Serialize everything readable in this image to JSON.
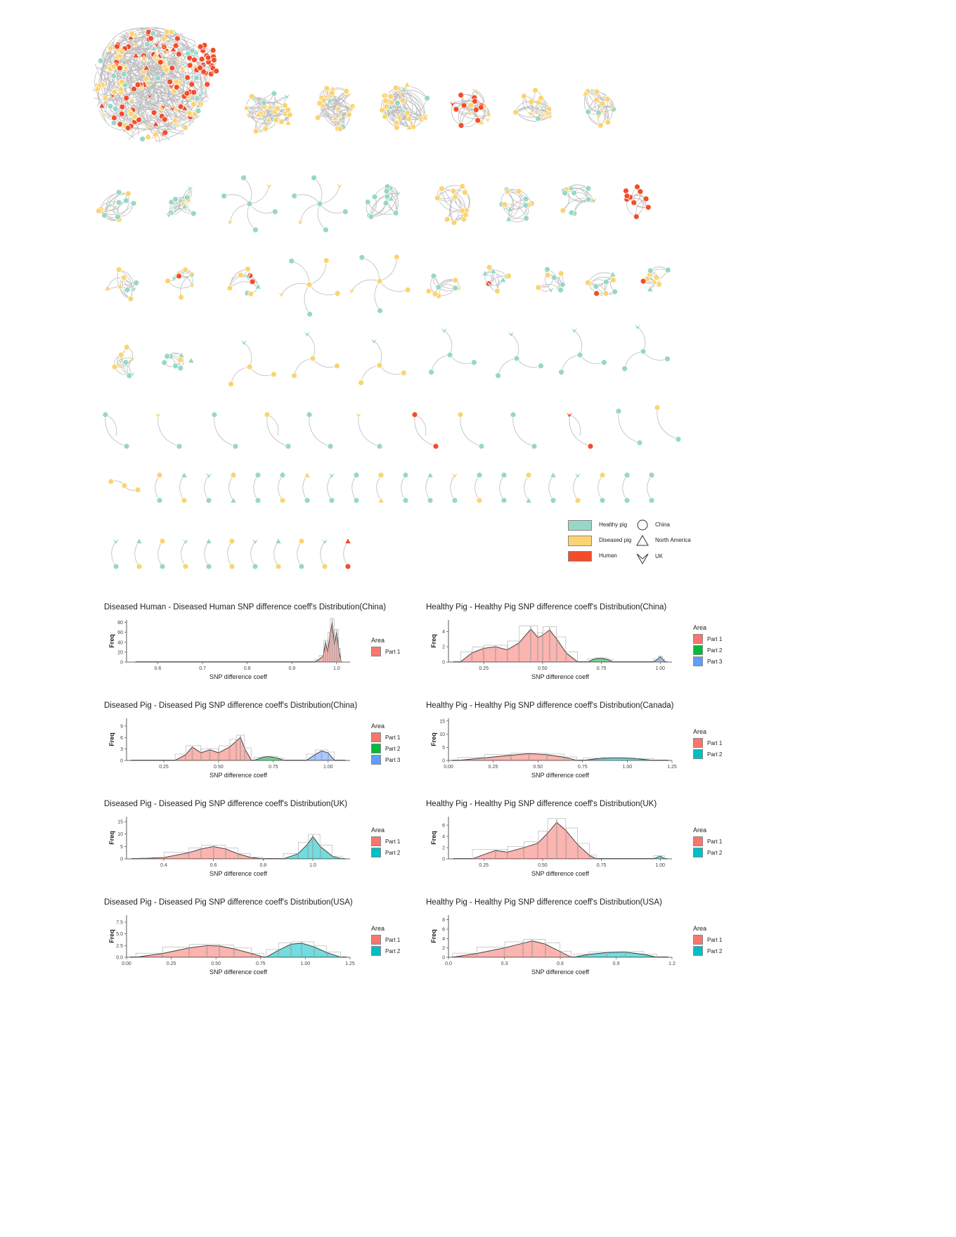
{
  "figure": {
    "network_legend": {
      "groups": [
        {
          "label": "Healthy pig",
          "color": "#98d7c7"
        },
        {
          "label": "Diseased pig",
          "color": "#fbd472"
        },
        {
          "label": "Human",
          "color": "#f24d2b"
        }
      ],
      "regions": [
        {
          "label": "China",
          "shape": "circle"
        },
        {
          "label": "North America",
          "shape": "triangle"
        },
        {
          "label": "UK",
          "shape": "down-chevron"
        }
      ]
    },
    "edge_color": "#bdbdbd"
  },
  "chart_data": [
    {
      "type": "area",
      "title": "Diseased Human - Diseased Human SNP difference coeff's Distribution(China)",
      "xlabel": "SNP difference coeff",
      "ylabel": "Freq",
      "xlim": [
        0.53,
        1.03
      ],
      "ylim": [
        0,
        85
      ],
      "xticks": [
        0.6,
        0.7,
        0.8,
        0.9,
        1.0
      ],
      "xtick_labels": [
        "0.6",
        "0.7",
        "0.8",
        "0.9",
        "1.0"
      ],
      "yticks": [
        0,
        20,
        40,
        60,
        80
      ],
      "ytick_labels": [
        "0",
        "20",
        "40",
        "60",
        "80"
      ],
      "legend_title": "Area",
      "series": [
        {
          "name": "Part 1",
          "color": "#f8766d",
          "x": [
            0.95,
            0.96,
            0.97,
            0.975,
            0.98,
            0.985,
            0.99,
            0.995,
            1.0,
            1.005,
            1.01
          ],
          "y": [
            0,
            5,
            12,
            40,
            20,
            55,
            80,
            35,
            60,
            25,
            0
          ]
        }
      ]
    },
    {
      "type": "area",
      "title": "Healthy Pig - Healthy Pig SNP difference coeff's Distribution(China)",
      "xlabel": "SNP difference coeff",
      "ylabel": "Freq",
      "xlim": [
        0.1,
        1.05
      ],
      "ylim": [
        0,
        5.5
      ],
      "xticks": [
        0.25,
        0.5,
        0.75,
        1.0
      ],
      "xtick_labels": [
        "0.25",
        "0.50",
        "0.75",
        "1.00"
      ],
      "yticks": [
        0,
        2,
        4
      ],
      "ytick_labels": [
        "0",
        "2",
        "4"
      ],
      "legend_title": "Area",
      "series": [
        {
          "name": "Part 1",
          "color": "#f8766d",
          "x": [
            0.15,
            0.2,
            0.25,
            0.3,
            0.35,
            0.4,
            0.45,
            0.48,
            0.5,
            0.53,
            0.56,
            0.6,
            0.65
          ],
          "y": [
            0,
            1.2,
            1.8,
            2.0,
            1.6,
            2.5,
            4.3,
            3.2,
            3.5,
            4.2,
            3.0,
            1.2,
            0
          ]
        },
        {
          "name": "Part 2",
          "color": "#00ba38",
          "x": [
            0.69,
            0.72,
            0.75,
            0.78,
            0.8
          ],
          "y": [
            0,
            0.4,
            0.5,
            0.3,
            0
          ]
        },
        {
          "name": "Part 3",
          "color": "#619cff",
          "x": [
            0.97,
            0.99,
            1.0,
            1.01,
            1.02
          ],
          "y": [
            0,
            0.4,
            0.7,
            0.4,
            0
          ]
        }
      ]
    },
    {
      "type": "area",
      "title": "Diseased Pig - Diseased Pig SNP difference coeff's Distribution(China)",
      "xlabel": "SNP difference coeff",
      "ylabel": "Freq",
      "xlim": [
        0.08,
        1.1
      ],
      "ylim": [
        0,
        11
      ],
      "xticks": [
        0.25,
        0.5,
        0.75,
        1.0
      ],
      "xtick_labels": [
        "0.25",
        "0.50",
        "0.75",
        "1.00"
      ],
      "yticks": [
        0,
        3,
        6,
        9
      ],
      "ytick_labels": [
        "0",
        "3",
        "6",
        "9"
      ],
      "legend_title": "Area",
      "series": [
        {
          "name": "Part 1",
          "color": "#f8766d",
          "x": [
            0.3,
            0.35,
            0.38,
            0.42,
            0.46,
            0.5,
            0.55,
            0.58,
            0.6,
            0.62,
            0.65
          ],
          "y": [
            0,
            1.5,
            3.5,
            2.0,
            2.8,
            2.0,
            3.5,
            5.0,
            6.0,
            3.0,
            0
          ]
        },
        {
          "name": "Part 2",
          "color": "#00ba38",
          "x": [
            0.66,
            0.7,
            0.73,
            0.77,
            0.8
          ],
          "y": [
            0,
            0.8,
            1.0,
            0.6,
            0
          ]
        },
        {
          "name": "Part 3",
          "color": "#619cff",
          "x": [
            0.9,
            0.94,
            0.97,
            1.0,
            1.03
          ],
          "y": [
            0,
            1.5,
            2.5,
            2.0,
            0
          ]
        }
      ]
    },
    {
      "type": "area",
      "title": "Healthy Pig - Healthy Pig SNP difference coeff's Distribution(Canada)",
      "xlabel": "SNP difference coeff",
      "ylabel": "Freq",
      "xlim": [
        0,
        1.25
      ],
      "ylim": [
        0,
        16
      ],
      "xticks": [
        0.0,
        0.25,
        0.5,
        0.75,
        1.0,
        1.25
      ],
      "xtick_labels": [
        "0.00",
        "0.25",
        "0.50",
        "0.75",
        "1.00",
        "1.25"
      ],
      "yticks": [
        0,
        5,
        10,
        15
      ],
      "ytick_labels": [
        "0",
        "5",
        "10",
        "15"
      ],
      "legend_title": "Area",
      "series": [
        {
          "name": "Part 1",
          "color": "#f8766d",
          "x": [
            0.05,
            0.2,
            0.35,
            0.45,
            0.55,
            0.65,
            0.72
          ],
          "y": [
            0,
            1.0,
            2.0,
            2.6,
            2.2,
            1.2,
            0
          ]
        },
        {
          "name": "Part 2",
          "color": "#00bfc4",
          "x": [
            0.75,
            0.85,
            0.95,
            1.05,
            1.15
          ],
          "y": [
            0,
            0.8,
            1.0,
            0.7,
            0
          ]
        }
      ]
    },
    {
      "type": "area",
      "title": "Diseased Pig - Diseased Pig SNP difference coeff's Distribution(UK)",
      "xlabel": "SNP difference coeff",
      "ylabel": "Freq",
      "xlim": [
        0.25,
        1.15
      ],
      "ylim": [
        0,
        17
      ],
      "xticks": [
        0.4,
        0.6,
        0.8,
        1.0
      ],
      "xtick_labels": [
        "0.4",
        "0.6",
        "0.8",
        "1.0"
      ],
      "yticks": [
        0,
        5,
        10,
        15
      ],
      "ytick_labels": [
        "0",
        "5",
        "10",
        "15"
      ],
      "legend_title": "Area",
      "series": [
        {
          "name": "Part 1",
          "color": "#f8766d",
          "x": [
            0.3,
            0.4,
            0.5,
            0.55,
            0.6,
            0.65,
            0.7,
            0.75,
            0.8
          ],
          "y": [
            0,
            0.5,
            2.5,
            4.0,
            5.0,
            4.0,
            2.0,
            0.6,
            0
          ]
        },
        {
          "name": "Part 2",
          "color": "#00bfc4",
          "x": [
            0.88,
            0.94,
            0.98,
            1.0,
            1.03,
            1.08,
            1.12
          ],
          "y": [
            0,
            2.0,
            6.0,
            9.0,
            5.0,
            1.0,
            0
          ]
        }
      ]
    },
    {
      "type": "area",
      "title": "Healthy Pig - Healthy Pig SNP difference coeff's Distribution(UK)",
      "xlabel": "SNP difference coeff",
      "ylabel": "Freq",
      "xlim": [
        0.1,
        1.05
      ],
      "ylim": [
        0,
        7.5
      ],
      "xticks": [
        0.25,
        0.5,
        0.75,
        1.0
      ],
      "xtick_labels": [
        "0.25",
        "0.50",
        "0.75",
        "1.00"
      ],
      "yticks": [
        0,
        2,
        4,
        6
      ],
      "ytick_labels": [
        "0",
        "2",
        "4",
        "6"
      ],
      "legend_title": "Area",
      "series": [
        {
          "name": "Part 1",
          "color": "#f8766d",
          "x": [
            0.2,
            0.3,
            0.35,
            0.42,
            0.48,
            0.52,
            0.56,
            0.6,
            0.65,
            0.7,
            0.73
          ],
          "y": [
            0,
            1.5,
            1.2,
            2.0,
            2.8,
            4.5,
            6.5,
            5.0,
            2.5,
            0.6,
            0
          ]
        },
        {
          "name": "Part 2",
          "color": "#00bfc4",
          "x": [
            0.97,
            1.0,
            1.02
          ],
          "y": [
            0,
            0.5,
            0
          ]
        }
      ]
    },
    {
      "type": "area",
      "title": "Diseased Pig - Diseased Pig SNP difference coeff's Distribution(USA)",
      "xlabel": "SNP difference coeff",
      "ylabel": "Freq",
      "xlim": [
        0,
        1.25
      ],
      "ylim": [
        0,
        9
      ],
      "xticks": [
        0.0,
        0.25,
        0.5,
        0.75,
        1.0,
        1.25
      ],
      "xtick_labels": [
        "0.00",
        "0.25",
        "0.50",
        "0.75",
        "1.00",
        "1.25"
      ],
      "yticks": [
        0,
        2.5,
        5,
        7.5
      ],
      "ytick_labels": [
        "0.0",
        "2.5",
        "5.0",
        "7.5"
      ],
      "legend_title": "Area",
      "series": [
        {
          "name": "Part 1",
          "color": "#f8766d",
          "x": [
            0.05,
            0.2,
            0.35,
            0.45,
            0.52,
            0.6,
            0.7,
            0.77
          ],
          "y": [
            0,
            0.8,
            2.0,
            2.5,
            2.4,
            1.8,
            0.8,
            0
          ]
        },
        {
          "name": "Part 2",
          "color": "#00bfc4",
          "x": [
            0.78,
            0.85,
            0.92,
            0.98,
            1.05,
            1.12,
            1.2
          ],
          "y": [
            0,
            1.5,
            2.8,
            3.0,
            2.2,
            1.0,
            0
          ]
        }
      ]
    },
    {
      "type": "area",
      "title": "Healthy Pig - Healthy Pig SNP difference coeff's Distribution(USA)",
      "xlabel": "SNP difference coeff",
      "ylabel": "Freq",
      "xlim": [
        0,
        1.2
      ],
      "ylim": [
        0,
        9
      ],
      "xticks": [
        0.0,
        0.3,
        0.6,
        0.9,
        1.2
      ],
      "xtick_labels": [
        "0.0",
        "0.3",
        "0.6",
        "0.9",
        "1.2"
      ],
      "yticks": [
        0,
        2,
        4,
        6,
        8
      ],
      "ytick_labels": [
        "0",
        "2",
        "4",
        "6",
        "8"
      ],
      "legend_title": "Area",
      "series": [
        {
          "name": "Part 1",
          "color": "#f8766d",
          "x": [
            0.02,
            0.15,
            0.3,
            0.4,
            0.45,
            0.52,
            0.6,
            0.66
          ],
          "y": [
            0,
            0.8,
            2.0,
            3.0,
            3.5,
            2.8,
            1.2,
            0
          ]
        },
        {
          "name": "Part 2",
          "color": "#00bfc4",
          "x": [
            0.67,
            0.75,
            0.85,
            0.95,
            1.05,
            1.12
          ],
          "y": [
            0,
            0.6,
            1.0,
            1.1,
            0.6,
            0
          ]
        }
      ]
    }
  ]
}
